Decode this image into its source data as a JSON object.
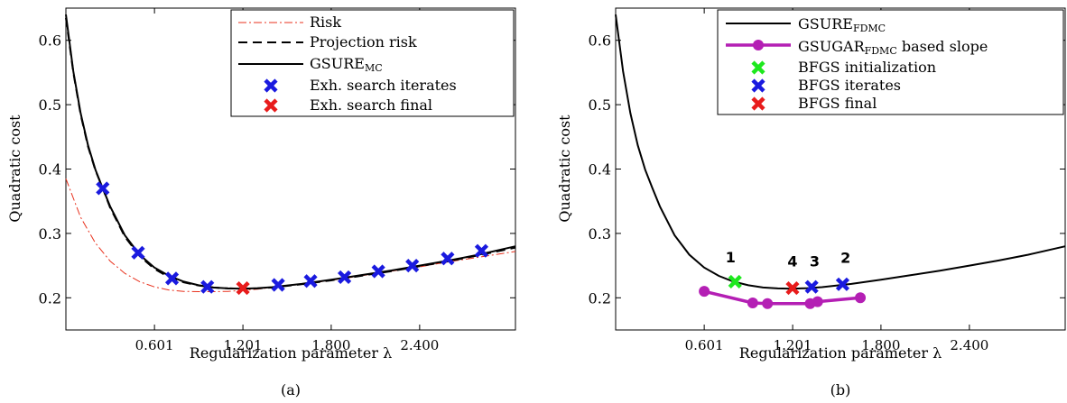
{
  "chart_data": [
    {
      "type": "line",
      "caption": "(a)",
      "xlabel": "Regularization parameter λ",
      "ylabel": "Quadratic cost",
      "xlim": [
        0,
        3.05
      ],
      "ylim": [
        0.15,
        0.65
      ],
      "xticks": [
        "0.601",
        "1.201",
        "1.800",
        "2.400"
      ],
      "xtick_values": [
        0.601,
        1.201,
        1.8,
        2.4
      ],
      "yticks": [
        "0.2",
        "0.3",
        "0.4",
        "0.5",
        "0.6"
      ],
      "ytick_values": [
        0.2,
        0.3,
        0.4,
        0.5,
        0.6
      ],
      "grid": false,
      "legend_position": "top-right",
      "series": [
        {
          "name": "Risk",
          "style": "dash-dot",
          "color": "#e8301c",
          "x": [
            0.0,
            0.1,
            0.2,
            0.3,
            0.4,
            0.5,
            0.6,
            0.7,
            0.8,
            0.9,
            1.0,
            1.1,
            1.2,
            1.3,
            1.4,
            1.6,
            1.8,
            2.0,
            2.2,
            2.4,
            2.6,
            2.8,
            3.05
          ],
          "values": [
            0.385,
            0.325,
            0.285,
            0.257,
            0.238,
            0.225,
            0.217,
            0.212,
            0.21,
            0.2095,
            0.2095,
            0.21,
            0.2115,
            0.2135,
            0.216,
            0.221,
            0.227,
            0.234,
            0.241,
            0.248,
            0.256,
            0.263,
            0.272
          ]
        },
        {
          "name": "Projection risk",
          "style": "dashed",
          "color": "#000000",
          "x": [
            0.0,
            0.05,
            0.1,
            0.15,
            0.2,
            0.25,
            0.3,
            0.4,
            0.5,
            0.6,
            0.7,
            0.8,
            0.9,
            1.0,
            1.1,
            1.2,
            1.3,
            1.4,
            1.6,
            1.8,
            2.0,
            2.2,
            2.4,
            2.6,
            2.8,
            3.05
          ],
          "values": [
            0.635,
            0.55,
            0.485,
            0.435,
            0.398,
            0.37,
            0.34,
            0.295,
            0.265,
            0.245,
            0.232,
            0.224,
            0.219,
            0.216,
            0.2145,
            0.214,
            0.2145,
            0.216,
            0.221,
            0.227,
            0.234,
            0.241,
            0.249,
            0.257,
            0.266,
            0.278
          ]
        },
        {
          "name": "GSURE_MC",
          "style": "solid",
          "color": "#000000",
          "x": [
            0.0,
            0.05,
            0.1,
            0.15,
            0.2,
            0.25,
            0.3,
            0.4,
            0.5,
            0.6,
            0.7,
            0.8,
            0.9,
            1.0,
            1.1,
            1.2,
            1.3,
            1.4,
            1.6,
            1.8,
            2.0,
            2.2,
            2.4,
            2.6,
            2.8,
            3.05
          ],
          "values": [
            0.64,
            0.552,
            0.487,
            0.437,
            0.399,
            0.37,
            0.342,
            0.297,
            0.267,
            0.247,
            0.234,
            0.225,
            0.2195,
            0.216,
            0.2145,
            0.214,
            0.215,
            0.2165,
            0.2215,
            0.228,
            0.235,
            0.242,
            0.25,
            0.258,
            0.267,
            0.28
          ]
        },
        {
          "name": "Exh. search iterates",
          "style": "x-marker",
          "color": "#1a1adf",
          "x": [
            0.25,
            0.49,
            0.72,
            0.96,
            1.44,
            1.66,
            1.89,
            2.12,
            2.35,
            2.59,
            2.82
          ],
          "values": [
            0.37,
            0.27,
            0.23,
            0.217,
            0.22,
            0.226,
            0.232,
            0.241,
            0.25,
            0.261,
            0.273
          ]
        },
        {
          "name": "Exh. search final",
          "style": "x-marker",
          "color": "#e81c1c",
          "x": [
            1.201
          ],
          "values": [
            0.215
          ]
        }
      ]
    },
    {
      "type": "line",
      "caption": "(b)",
      "xlabel": "Regularization parameter λ",
      "ylabel": "Quadratic cost",
      "xlim": [
        0,
        3.05
      ],
      "ylim": [
        0.15,
        0.65
      ],
      "xticks": [
        "0.601",
        "1.201",
        "1.800",
        "2.400"
      ],
      "xtick_values": [
        0.601,
        1.201,
        1.8,
        2.4
      ],
      "yticks": [
        "0.2",
        "0.3",
        "0.4",
        "0.5",
        "0.6"
      ],
      "ytick_values": [
        0.2,
        0.3,
        0.4,
        0.5,
        0.6
      ],
      "grid": false,
      "legend_position": "top-right",
      "series": [
        {
          "name": "GSURE_FDMC",
          "style": "solid",
          "color": "#000000",
          "x": [
            0.0,
            0.05,
            0.1,
            0.15,
            0.2,
            0.25,
            0.3,
            0.4,
            0.5,
            0.6,
            0.7,
            0.8,
            0.9,
            1.0,
            1.1,
            1.2,
            1.3,
            1.4,
            1.6,
            1.8,
            2.0,
            2.2,
            2.4,
            2.6,
            2.8,
            3.05
          ],
          "values": [
            0.64,
            0.552,
            0.487,
            0.437,
            0.399,
            0.37,
            0.342,
            0.297,
            0.267,
            0.247,
            0.234,
            0.225,
            0.2195,
            0.216,
            0.2145,
            0.214,
            0.215,
            0.2165,
            0.2215,
            0.228,
            0.235,
            0.242,
            0.25,
            0.258,
            0.267,
            0.28
          ]
        },
        {
          "name": "GSUGAR_FDMC based slope",
          "style": "solid-marker",
          "color": "#b41fb4",
          "x": [
            0.601,
            0.93,
            1.03,
            1.32,
            1.37,
            1.66
          ],
          "values": [
            0.21,
            0.192,
            0.191,
            0.191,
            0.194,
            0.2
          ]
        },
        {
          "name": "BFGS initialization",
          "style": "x-marker",
          "color": "#1ee81e",
          "x": [
            0.81
          ],
          "values": [
            0.225
          ]
        },
        {
          "name": "BFGS iterates",
          "style": "x-marker",
          "color": "#1a1adf",
          "x": [
            1.33,
            1.54
          ],
          "values": [
            0.217,
            0.221
          ]
        },
        {
          "name": "BFGS final",
          "style": "x-marker",
          "color": "#e81c1c",
          "x": [
            1.2
          ],
          "values": [
            0.215
          ]
        }
      ],
      "annotations": [
        {
          "text": "1",
          "x": 0.78,
          "y": 0.255
        },
        {
          "text": "4",
          "x": 1.2,
          "y": 0.249
        },
        {
          "text": "3",
          "x": 1.35,
          "y": 0.249
        },
        {
          "text": "2",
          "x": 1.56,
          "y": 0.254
        }
      ]
    }
  ],
  "legends": [
    [
      {
        "main": "Risk",
        "sub": ""
      },
      {
        "main": "Projection risk",
        "sub": ""
      },
      {
        "main": "GSURE",
        "sub": "MC"
      },
      {
        "main": "Exh. search iterates",
        "sub": ""
      },
      {
        "main": "Exh. search final",
        "sub": ""
      }
    ],
    [
      {
        "main": "GSURE",
        "sub": "FDMC",
        "post": ""
      },
      {
        "main": "GSUGAR",
        "sub": "FDMC",
        "post": " based slope"
      },
      {
        "main": "BFGS initialization",
        "sub": "",
        "post": ""
      },
      {
        "main": "BFGS iterates",
        "sub": "",
        "post": ""
      },
      {
        "main": "BFGS final",
        "sub": "",
        "post": ""
      }
    ]
  ]
}
